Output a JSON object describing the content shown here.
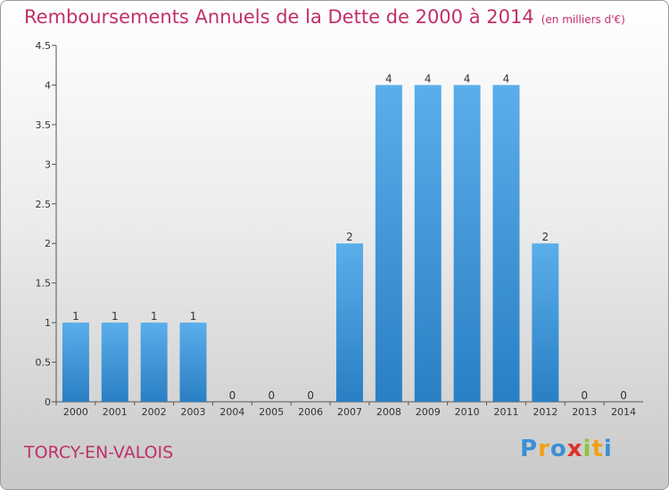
{
  "title": "Remboursements Annuels de la Dette de 2000 à 2014",
  "unit": "(en milliers d'€)",
  "commune": "TORCY-EN-VALOIS",
  "logo": {
    "letters": [
      "P",
      "r",
      "o",
      "x",
      "i",
      "t",
      "i"
    ],
    "colors": [
      "#3a8fd6",
      "#f0a21a",
      "#3a8fd6",
      "#e0302a",
      "#8bc53f",
      "#f0a21a",
      "#3a8fd6"
    ]
  },
  "chart_data": {
    "type": "bar",
    "categories": [
      "2000",
      "2001",
      "2002",
      "2003",
      "2004",
      "2005",
      "2006",
      "2007",
      "2008",
      "2009",
      "2010",
      "2011",
      "2012",
      "2013",
      "2014"
    ],
    "values": [
      1,
      1,
      1,
      1,
      0,
      0,
      0,
      2,
      4,
      4,
      4,
      4,
      2,
      0,
      0
    ],
    "value_labels": [
      "1",
      "1",
      "1",
      "1",
      "0",
      "0",
      "0",
      "2",
      "4",
      "4",
      "4",
      "4",
      "2",
      "0",
      "0"
    ],
    "title": "Remboursements Annuels de la Dette de 2000 à 2014",
    "ylim": [
      0,
      4.5
    ],
    "yticks": [
      0,
      0.5,
      1,
      1.5,
      2,
      2.5,
      3,
      3.5,
      4,
      4.5
    ],
    "ytick_labels": [
      "0",
      "0.5",
      "1",
      "1.5",
      "2",
      "2.5",
      "3",
      "3.5",
      "4",
      "4.5"
    ],
    "grid": false,
    "bar_color": "#3a8fd6"
  }
}
